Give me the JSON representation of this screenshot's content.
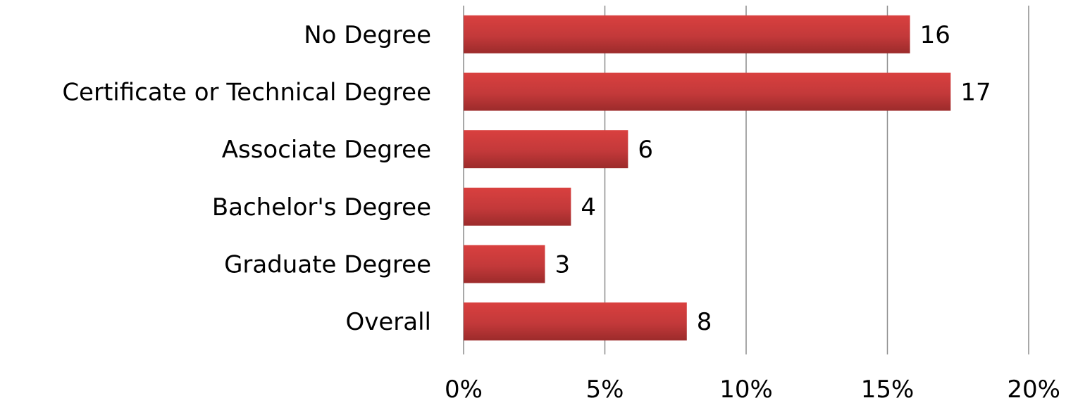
{
  "chart_data": {
    "type": "bar",
    "orientation": "horizontal",
    "categories": [
      "No Degree",
      "Certificate or Technical Degree",
      "Associate Degree",
      "Bachelor's Degree",
      "Graduate Degree",
      "Overall"
    ],
    "values": [
      16,
      17,
      6,
      4,
      3,
      8
    ],
    "data_labels": [
      "16",
      "17",
      "6",
      "4",
      "3",
      "8"
    ],
    "bar_fractions_of_20": [
      0.79,
      0.862,
      0.291,
      0.19,
      0.144,
      0.395
    ],
    "xlim": [
      0,
      20
    ],
    "xticks": [
      0,
      5,
      10,
      15,
      20
    ],
    "xtick_labels": [
      "0%",
      "5%",
      "10%",
      "15%",
      "20%"
    ],
    "grid": true,
    "legend": "none",
    "bar_color": "#c0393a",
    "title": "",
    "xlabel": "",
    "ylabel": ""
  }
}
